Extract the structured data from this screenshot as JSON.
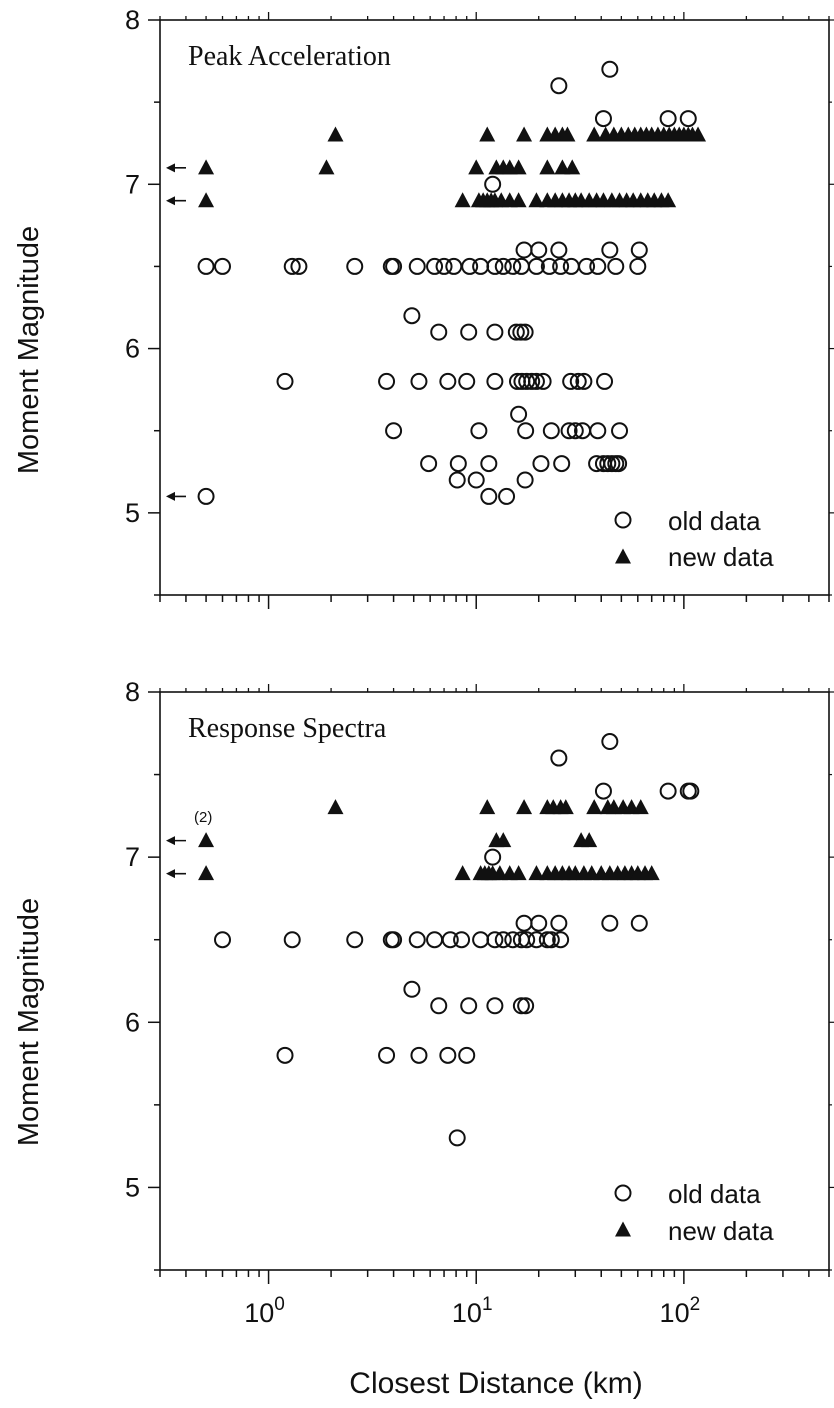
{
  "figure": {
    "xlabel": "Closest Distance (km)"
  },
  "chart_data": [
    {
      "type": "scatter",
      "title": "Peak Acceleration",
      "ylabel": "Moment Magnitude",
      "xscale": "log",
      "xlim": [
        0.3,
        500
      ],
      "ylim": [
        4.5,
        8
      ],
      "yticks": [
        "5",
        "6",
        "7",
        "8"
      ],
      "xticks": [
        {
          "value": 1,
          "base": "10",
          "exp": "0"
        },
        {
          "value": 10,
          "base": "10",
          "exp": "1"
        },
        {
          "value": 100,
          "base": "10",
          "exp": "2"
        }
      ],
      "show_xtick_labels": false,
      "grid": false,
      "legend": {
        "position": "bottom-right",
        "entries": [
          "old data",
          "new data"
        ]
      },
      "annotations": [],
      "arrows": [
        7.1,
        6.9,
        5.1
      ],
      "series": [
        {
          "name": "old data",
          "marker": "open-circle",
          "points": [
            [
              25,
              7.6
            ],
            [
              44,
              7.7
            ],
            [
              41,
              7.4
            ],
            [
              84,
              7.4
            ],
            [
              105,
              7.4
            ],
            [
              12,
              7.0
            ],
            [
              17,
              6.6
            ],
            [
              20,
              6.6
            ],
            [
              25,
              6.6
            ],
            [
              44,
              6.6
            ],
            [
              61,
              6.6
            ],
            [
              0.5,
              6.5
            ],
            [
              0.6,
              6.5
            ],
            [
              1.3,
              6.5
            ],
            [
              1.4,
              6.5
            ],
            [
              2.6,
              6.5
            ],
            [
              3.9,
              6.5
            ],
            [
              4.0,
              6.5
            ],
            [
              5.2,
              6.5
            ],
            [
              6.3,
              6.5
            ],
            [
              7.0,
              6.5
            ],
            [
              7.8,
              6.5
            ],
            [
              9.3,
              6.5
            ],
            [
              10.5,
              6.5
            ],
            [
              12.3,
              6.5
            ],
            [
              13.5,
              6.5
            ],
            [
              15.0,
              6.5
            ],
            [
              16.5,
              6.5
            ],
            [
              19.5,
              6.5
            ],
            [
              22.5,
              6.5
            ],
            [
              25.5,
              6.5
            ],
            [
              28.7,
              6.5
            ],
            [
              34.0,
              6.5
            ],
            [
              38.5,
              6.5
            ],
            [
              47.0,
              6.5
            ],
            [
              60.0,
              6.5
            ],
            [
              4.9,
              6.2
            ],
            [
              6.6,
              6.1
            ],
            [
              9.2,
              6.1
            ],
            [
              12.3,
              6.1
            ],
            [
              15.6,
              6.1
            ],
            [
              16.4,
              6.1
            ],
            [
              17.2,
              6.1
            ],
            [
              1.2,
              5.8
            ],
            [
              3.7,
              5.8
            ],
            [
              5.3,
              5.8
            ],
            [
              7.3,
              5.8
            ],
            [
              9.0,
              5.8
            ],
            [
              12.3,
              5.8
            ],
            [
              15.8,
              5.8
            ],
            [
              16.6,
              5.8
            ],
            [
              17.5,
              5.8
            ],
            [
              18.5,
              5.8
            ],
            [
              19.5,
              5.8
            ],
            [
              21.0,
              5.8
            ],
            [
              28.5,
              5.8
            ],
            [
              31.0,
              5.8
            ],
            [
              33.0,
              5.8
            ],
            [
              41.5,
              5.8
            ],
            [
              16.0,
              5.6
            ],
            [
              4.0,
              5.5
            ],
            [
              10.3,
              5.5
            ],
            [
              17.3,
              5.5
            ],
            [
              23.0,
              5.5
            ],
            [
              28.0,
              5.5
            ],
            [
              30.0,
              5.5
            ],
            [
              32.5,
              5.5
            ],
            [
              38.5,
              5.5
            ],
            [
              49.0,
              5.5
            ],
            [
              5.9,
              5.3
            ],
            [
              8.2,
              5.3
            ],
            [
              11.5,
              5.3
            ],
            [
              20.5,
              5.3
            ],
            [
              25.8,
              5.3
            ],
            [
              38.0,
              5.3
            ],
            [
              41.0,
              5.3
            ],
            [
              43.0,
              5.3
            ],
            [
              45.0,
              5.3
            ],
            [
              47.0,
              5.3
            ],
            [
              48.5,
              5.3
            ],
            [
              8.1,
              5.2
            ],
            [
              10.0,
              5.2
            ],
            [
              17.2,
              5.2
            ],
            [
              0.5,
              5.1
            ],
            [
              11.5,
              5.1
            ],
            [
              14.0,
              5.1
            ]
          ]
        },
        {
          "name": "new data",
          "marker": "filled-triangle",
          "points": [
            [
              2.1,
              7.3
            ],
            [
              11.3,
              7.3
            ],
            [
              17.0,
              7.3
            ],
            [
              22.0,
              7.3
            ],
            [
              24.0,
              7.3
            ],
            [
              26.0,
              7.3
            ],
            [
              27.5,
              7.3
            ],
            [
              37.0,
              7.3
            ],
            [
              42.0,
              7.3
            ],
            [
              46.0,
              7.3
            ],
            [
              50.0,
              7.3
            ],
            [
              54.0,
              7.3
            ],
            [
              58.0,
              7.3
            ],
            [
              62.0,
              7.3
            ],
            [
              66.0,
              7.3
            ],
            [
              70.0,
              7.3
            ],
            [
              75.0,
              7.3
            ],
            [
              80.0,
              7.3
            ],
            [
              85.0,
              7.3
            ],
            [
              90.0,
              7.3
            ],
            [
              95.0,
              7.3
            ],
            [
              100.0,
              7.3
            ],
            [
              105.0,
              7.3
            ],
            [
              110.0,
              7.3
            ],
            [
              117.0,
              7.3
            ],
            [
              0.5,
              7.1
            ],
            [
              1.9,
              7.1
            ],
            [
              10.0,
              7.1
            ],
            [
              12.5,
              7.1
            ],
            [
              13.5,
              7.1
            ],
            [
              14.5,
              7.1
            ],
            [
              16.0,
              7.1
            ],
            [
              22.0,
              7.1
            ],
            [
              26.0,
              7.1
            ],
            [
              29.0,
              7.1
            ],
            [
              0.5,
              6.9
            ],
            [
              8.6,
              6.9
            ],
            [
              10.3,
              6.9
            ],
            [
              10.8,
              6.9
            ],
            [
              11.3,
              6.9
            ],
            [
              11.8,
              6.9
            ],
            [
              12.3,
              6.9
            ],
            [
              13.2,
              6.9
            ],
            [
              14.5,
              6.9
            ],
            [
              16.0,
              6.9
            ],
            [
              19.5,
              6.9
            ],
            [
              22.0,
              6.9
            ],
            [
              24.0,
              6.9
            ],
            [
              26.0,
              6.9
            ],
            [
              28.0,
              6.9
            ],
            [
              30.0,
              6.9
            ],
            [
              32.0,
              6.9
            ],
            [
              35.0,
              6.9
            ],
            [
              38.0,
              6.9
            ],
            [
              41.0,
              6.9
            ],
            [
              45.0,
              6.9
            ],
            [
              49.0,
              6.9
            ],
            [
              53.0,
              6.9
            ],
            [
              57.0,
              6.9
            ],
            [
              62.0,
              6.9
            ],
            [
              67.0,
              6.9
            ],
            [
              72.0,
              6.9
            ],
            [
              78.0,
              6.9
            ],
            [
              84.0,
              6.9
            ]
          ]
        }
      ]
    },
    {
      "type": "scatter",
      "title": "Response Spectra",
      "ylabel": "Moment Magnitude",
      "xscale": "log",
      "xlim": [
        0.3,
        500
      ],
      "ylim": [
        4.5,
        8
      ],
      "yticks": [
        "5",
        "6",
        "7",
        "8"
      ],
      "xticks": [
        {
          "value": 1,
          "base": "10",
          "exp": "0"
        },
        {
          "value": 10,
          "base": "10",
          "exp": "1"
        },
        {
          "value": 100,
          "base": "10",
          "exp": "2"
        }
      ],
      "show_xtick_labels": true,
      "grid": false,
      "legend": {
        "position": "bottom-right",
        "entries": [
          "old data",
          "new data"
        ]
      },
      "annotations": [
        {
          "text": "(2)",
          "x": 0.5,
          "y": 7.1
        }
      ],
      "arrows": [
        7.1,
        6.9
      ],
      "series": [
        {
          "name": "old data",
          "marker": "open-circle",
          "points": [
            [
              25,
              7.6
            ],
            [
              44,
              7.7
            ],
            [
              41,
              7.4
            ],
            [
              84,
              7.4
            ],
            [
              105,
              7.4
            ],
            [
              108,
              7.4
            ],
            [
              12,
              7.0
            ],
            [
              17,
              6.6
            ],
            [
              20,
              6.6
            ],
            [
              25,
              6.6
            ],
            [
              44,
              6.6
            ],
            [
              61,
              6.6
            ],
            [
              0.6,
              6.5
            ],
            [
              1.3,
              6.5
            ],
            [
              2.6,
              6.5
            ],
            [
              3.9,
              6.5
            ],
            [
              4.0,
              6.5
            ],
            [
              5.2,
              6.5
            ],
            [
              6.3,
              6.5
            ],
            [
              7.5,
              6.5
            ],
            [
              8.5,
              6.5
            ],
            [
              10.5,
              6.5
            ],
            [
              12.3,
              6.5
            ],
            [
              13.5,
              6.5
            ],
            [
              15.0,
              6.5
            ],
            [
              16.5,
              6.5
            ],
            [
              17.5,
              6.5
            ],
            [
              19.5,
              6.5
            ],
            [
              22.0,
              6.5
            ],
            [
              23.0,
              6.5
            ],
            [
              25.5,
              6.5
            ],
            [
              4.9,
              6.2
            ],
            [
              6.6,
              6.1
            ],
            [
              9.2,
              6.1
            ],
            [
              12.3,
              6.1
            ],
            [
              16.5,
              6.1
            ],
            [
              17.3,
              6.1
            ],
            [
              1.2,
              5.8
            ],
            [
              3.7,
              5.8
            ],
            [
              5.3,
              5.8
            ],
            [
              7.3,
              5.8
            ],
            [
              9.0,
              5.8
            ],
            [
              8.1,
              5.3
            ]
          ]
        },
        {
          "name": "new data",
          "marker": "filled-triangle",
          "points": [
            [
              2.1,
              7.3
            ],
            [
              11.3,
              7.3
            ],
            [
              17.0,
              7.3
            ],
            [
              22.0,
              7.3
            ],
            [
              23.5,
              7.3
            ],
            [
              25.5,
              7.3
            ],
            [
              27.0,
              7.3
            ],
            [
              37.0,
              7.3
            ],
            [
              43.0,
              7.3
            ],
            [
              46.0,
              7.3
            ],
            [
              51.0,
              7.3
            ],
            [
              56.0,
              7.3
            ],
            [
              62.0,
              7.3
            ],
            [
              0.5,
              7.1
            ],
            [
              12.5,
              7.1
            ],
            [
              13.5,
              7.1
            ],
            [
              32.0,
              7.1
            ],
            [
              35.0,
              7.1
            ],
            [
              0.5,
              6.9
            ],
            [
              8.6,
              6.9
            ],
            [
              10.5,
              6.9
            ],
            [
              11.0,
              6.9
            ],
            [
              11.5,
              6.9
            ],
            [
              12.0,
              6.9
            ],
            [
              13.0,
              6.9
            ],
            [
              14.5,
              6.9
            ],
            [
              16.0,
              6.9
            ],
            [
              19.5,
              6.9
            ],
            [
              22.0,
              6.9
            ],
            [
              24.0,
              6.9
            ],
            [
              26.0,
              6.9
            ],
            [
              28.0,
              6.9
            ],
            [
              30.0,
              6.9
            ],
            [
              33.0,
              6.9
            ],
            [
              36.0,
              6.9
            ],
            [
              40.0,
              6.9
            ],
            [
              44.0,
              6.9
            ],
            [
              48.0,
              6.9
            ],
            [
              52.0,
              6.9
            ],
            [
              56.0,
              6.9
            ],
            [
              60.0,
              6.9
            ],
            [
              65.0,
              6.9
            ],
            [
              70.0,
              6.9
            ]
          ]
        }
      ]
    }
  ]
}
